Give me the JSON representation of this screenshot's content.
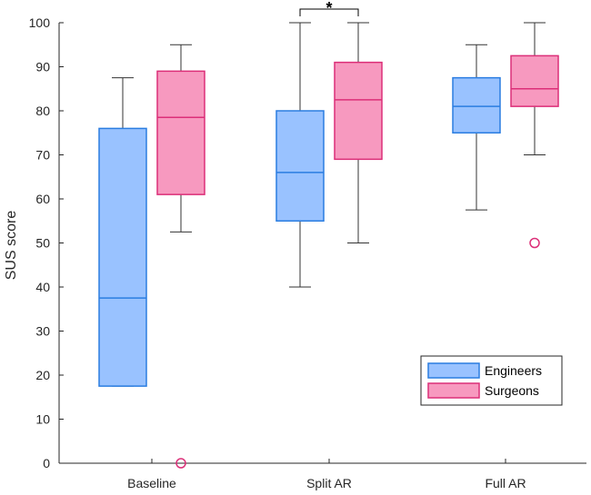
{
  "chart_data": {
    "type": "boxplot",
    "title": "",
    "xlabel": "",
    "ylabel": "SUS score",
    "ylim": [
      0,
      100
    ],
    "yticks": [
      0,
      10,
      20,
      30,
      40,
      50,
      60,
      70,
      80,
      90,
      100
    ],
    "categories": [
      "Baseline",
      "Split AR",
      "Full AR"
    ],
    "series": [
      {
        "name": "Engineers",
        "fill": "#99c2ff",
        "stroke": "#2a7de1",
        "boxes": [
          {
            "whisker_low": 17.5,
            "q1": 17.5,
            "median": 37.5,
            "q3": 76,
            "whisker_high": 87.5,
            "outliers": []
          },
          {
            "whisker_low": 40,
            "q1": 55,
            "median": 66,
            "q3": 80,
            "whisker_high": 100,
            "outliers": []
          },
          {
            "whisker_low": 57.5,
            "q1": 75,
            "median": 81,
            "q3": 87.5,
            "whisker_high": 95,
            "outliers": []
          }
        ]
      },
      {
        "name": "Surgeons",
        "fill": "#f799bf",
        "stroke": "#dc2f78",
        "boxes": [
          {
            "whisker_low": 52.5,
            "q1": 61,
            "median": 78.5,
            "q3": 89,
            "whisker_high": 95,
            "outliers": [
              0
            ]
          },
          {
            "whisker_low": 50,
            "q1": 69,
            "median": 82.5,
            "q3": 91,
            "whisker_high": 100,
            "outliers": []
          },
          {
            "whisker_low": 70,
            "q1": 81,
            "median": 85,
            "q3": 92.5,
            "whisker_high": 100,
            "outliers": [
              50
            ]
          }
        ]
      }
    ],
    "annotations": [
      {
        "text": "*",
        "category": "Split AR",
        "between": [
          "Engineers",
          "Surgeons"
        ]
      }
    ],
    "legend": {
      "position": "bottom-right",
      "entries": [
        "Engineers",
        "Surgeons"
      ]
    }
  }
}
